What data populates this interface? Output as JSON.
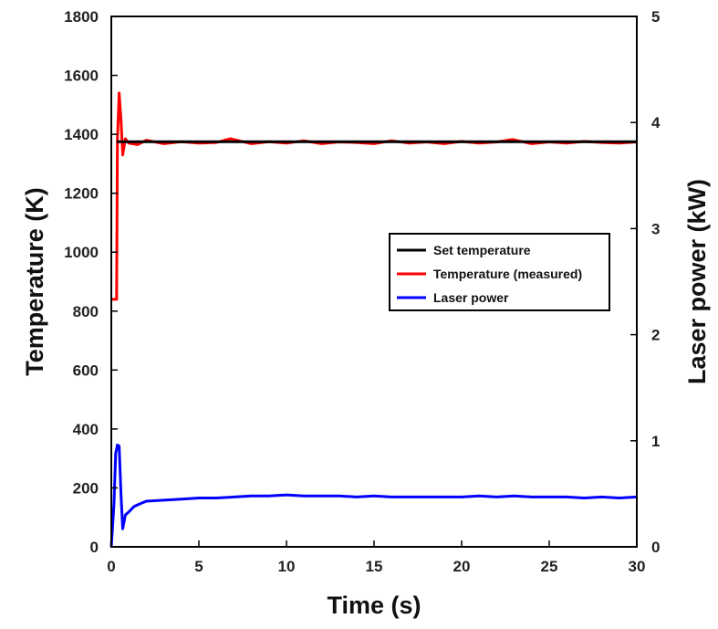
{
  "chart_data": {
    "type": "line",
    "title": "",
    "xlabel": "Time (s)",
    "ylabel_left": "Temperature (K)",
    "ylabel_right": "Laser power (kW)",
    "xlim": [
      0,
      30
    ],
    "ylim_left": [
      0,
      1800
    ],
    "ylim_right": [
      0,
      5
    ],
    "x_ticks": [
      0,
      5,
      10,
      15,
      20,
      25,
      30
    ],
    "y_ticks_left": [
      0,
      200,
      400,
      600,
      800,
      1000,
      1200,
      1400,
      1600,
      1800
    ],
    "y_ticks_right": [
      0,
      1,
      2,
      3,
      4,
      5
    ],
    "grid": false,
    "legend_position": "center-right",
    "series": [
      {
        "name": "Set temperature",
        "axis": "left",
        "color": "#000000",
        "x": [
          0.3,
          30
        ],
        "y": [
          1375,
          1375
        ]
      },
      {
        "name": "Temperature (measured)",
        "axis": "left",
        "color": "#ff0000",
        "x": [
          0,
          0.3,
          0.35,
          0.45,
          0.55,
          0.65,
          0.8,
          1.0,
          1.5,
          2,
          3,
          4,
          5,
          6,
          6.8,
          8,
          9,
          10,
          11,
          12,
          13,
          14,
          15,
          16,
          17,
          18,
          19,
          20,
          21,
          22,
          22.9,
          24,
          25,
          26,
          27,
          28,
          29,
          30
        ],
        "y": [
          840,
          840,
          1380,
          1540,
          1450,
          1330,
          1385,
          1370,
          1365,
          1380,
          1368,
          1375,
          1370,
          1372,
          1385,
          1368,
          1375,
          1370,
          1378,
          1368,
          1374,
          1372,
          1368,
          1378,
          1370,
          1374,
          1368,
          1376,
          1370,
          1374,
          1382,
          1368,
          1374,
          1370,
          1376,
          1372,
          1370,
          1374
        ]
      },
      {
        "name": "Laser power",
        "axis": "right",
        "color": "#0000ff",
        "x": [
          0,
          0.15,
          0.25,
          0.35,
          0.45,
          0.55,
          0.65,
          0.8,
          1.0,
          1.3,
          1.7,
          2,
          3,
          4,
          5,
          6,
          7,
          8,
          9,
          10,
          11,
          12,
          13,
          14,
          15,
          16,
          17,
          18,
          19,
          20,
          21,
          22,
          23,
          24,
          25,
          26,
          27,
          28,
          29,
          30
        ],
        "y": [
          0,
          0.4,
          0.88,
          0.96,
          0.95,
          0.5,
          0.17,
          0.3,
          0.33,
          0.38,
          0.41,
          0.43,
          0.44,
          0.45,
          0.46,
          0.46,
          0.47,
          0.48,
          0.48,
          0.49,
          0.48,
          0.48,
          0.48,
          0.47,
          0.48,
          0.47,
          0.47,
          0.47,
          0.47,
          0.47,
          0.48,
          0.47,
          0.48,
          0.47,
          0.47,
          0.47,
          0.46,
          0.47,
          0.46,
          0.47
        ]
      }
    ]
  }
}
